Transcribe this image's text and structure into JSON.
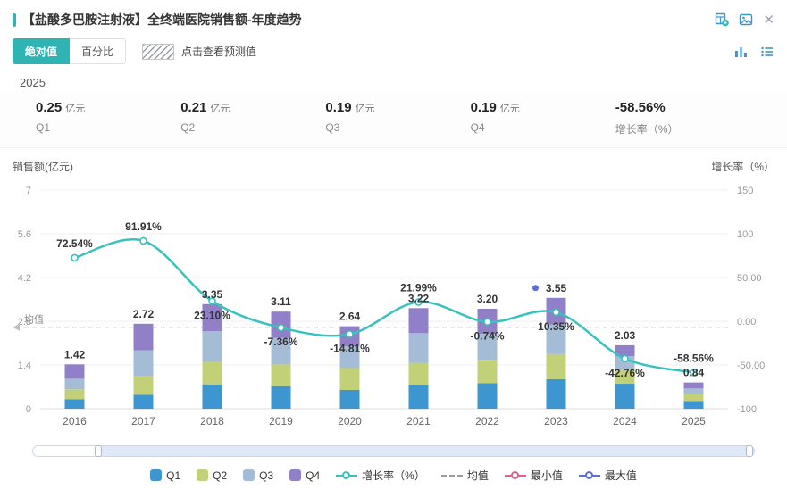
{
  "header": {
    "title": "【盐酸多巴胺注射液】全终端医院销售额-年度趋势",
    "icons": [
      "export-table-icon",
      "export-image-icon",
      "close-icon"
    ]
  },
  "controls": {
    "absolute_label": "绝对值",
    "percent_label": "百分比",
    "forecast_hint": "点击查看预测值",
    "icons": [
      "bar-chart-icon",
      "list-icon"
    ]
  },
  "stats": {
    "year": "2025",
    "items": [
      {
        "value": "0.25",
        "unit": "亿元",
        "label": "Q1"
      },
      {
        "value": "0.21",
        "unit": "亿元",
        "label": "Q2"
      },
      {
        "value": "0.19",
        "unit": "亿元",
        "label": "Q3"
      },
      {
        "value": "0.19",
        "unit": "亿元",
        "label": "Q4"
      },
      {
        "value": "-58.56%",
        "unit": "",
        "label": "增长率（%）"
      }
    ]
  },
  "chart_data": {
    "type": "bar",
    "subtype": "stacked-bars-with-growth-line",
    "categories": [
      "2016",
      "2017",
      "2018",
      "2019",
      "2020",
      "2021",
      "2022",
      "2023",
      "2024",
      "2025"
    ],
    "series": [
      {
        "name": "Q1",
        "type": "bar",
        "stack": true,
        "values": [
          0.3,
          0.45,
          0.78,
          0.72,
          0.6,
          0.75,
          0.82,
          0.95,
          0.8,
          0.25
        ]
      },
      {
        "name": "Q2",
        "type": "bar",
        "stack": true,
        "values": [
          0.32,
          0.6,
          0.72,
          0.7,
          0.7,
          0.72,
          0.75,
          0.8,
          0.45,
          0.21
        ]
      },
      {
        "name": "Q3",
        "type": "bar",
        "stack": true,
        "values": [
          0.34,
          0.82,
          0.98,
          0.85,
          0.7,
          0.95,
          0.83,
          0.95,
          0.43,
          0.19
        ]
      },
      {
        "name": "Q4",
        "type": "bar",
        "stack": true,
        "values": [
          0.46,
          0.85,
          0.87,
          0.84,
          0.64,
          0.8,
          0.8,
          0.85,
          0.35,
          0.19
        ]
      },
      {
        "name": "增长率（%）",
        "type": "line",
        "values": [
          72.54,
          91.91,
          23.1,
          -7.36,
          -14.81,
          21.99,
          -0.74,
          10.35,
          -42.76,
          -58.56
        ]
      }
    ],
    "totals": [
      1.42,
      2.72,
      3.35,
      3.11,
      2.64,
      3.22,
      3.2,
      3.55,
      2.03,
      0.84
    ],
    "total_labels": [
      "1.42",
      "2.72",
      "3.35",
      "3.11",
      "2.64",
      "3.22",
      "3.20",
      "3.55",
      "2.03",
      "0.84"
    ],
    "growth_labels": [
      "72.54%",
      "91.91%",
      "23.10%",
      "-7.36%",
      "-14.81%",
      "21.99%",
      "-0.74%",
      "10.35%",
      "-42.76%",
      "-58.56%"
    ],
    "growth_label_above": [
      true,
      true,
      false,
      false,
      false,
      true,
      false,
      false,
      false,
      true
    ],
    "mean": 2.61,
    "mean_label": "均值",
    "max_point": {
      "category": "2023",
      "value": 3.55
    },
    "min_point": {
      "category": "2025",
      "value": 0.84
    },
    "ylabel": "销售额(亿元)",
    "y2label": "增长率（%）",
    "y_ticks": [
      "7",
      "5.6",
      "4.2",
      "2.8",
      "1.4",
      "0"
    ],
    "y_tick_values": [
      7,
      5.6,
      4.2,
      2.8,
      1.4,
      0
    ],
    "y2_ticks": [
      "150",
      "100",
      "50.00",
      "0.00",
      "-50.00",
      "-100"
    ],
    "ylim": [
      0,
      7
    ],
    "y2lim": [
      -100,
      150
    ],
    "grid": true,
    "legend_position": "bottom"
  },
  "legend": {
    "items": [
      {
        "label": "Q1"
      },
      {
        "label": "Q2"
      },
      {
        "label": "Q3"
      },
      {
        "label": "Q4"
      },
      {
        "label": "增长率（%）"
      },
      {
        "label": "均值"
      },
      {
        "label": "最小值"
      },
      {
        "label": "最大值"
      }
    ]
  },
  "colors": {
    "accent": "#2fb3b3",
    "q1": "#3d96d0",
    "q2": "#c2d178",
    "q3": "#a4bcd5",
    "q4": "#9180c8",
    "line": "#38c2bf",
    "mean": "#aaaaaa",
    "min": "#e0608e",
    "max": "#5b6fd8"
  }
}
